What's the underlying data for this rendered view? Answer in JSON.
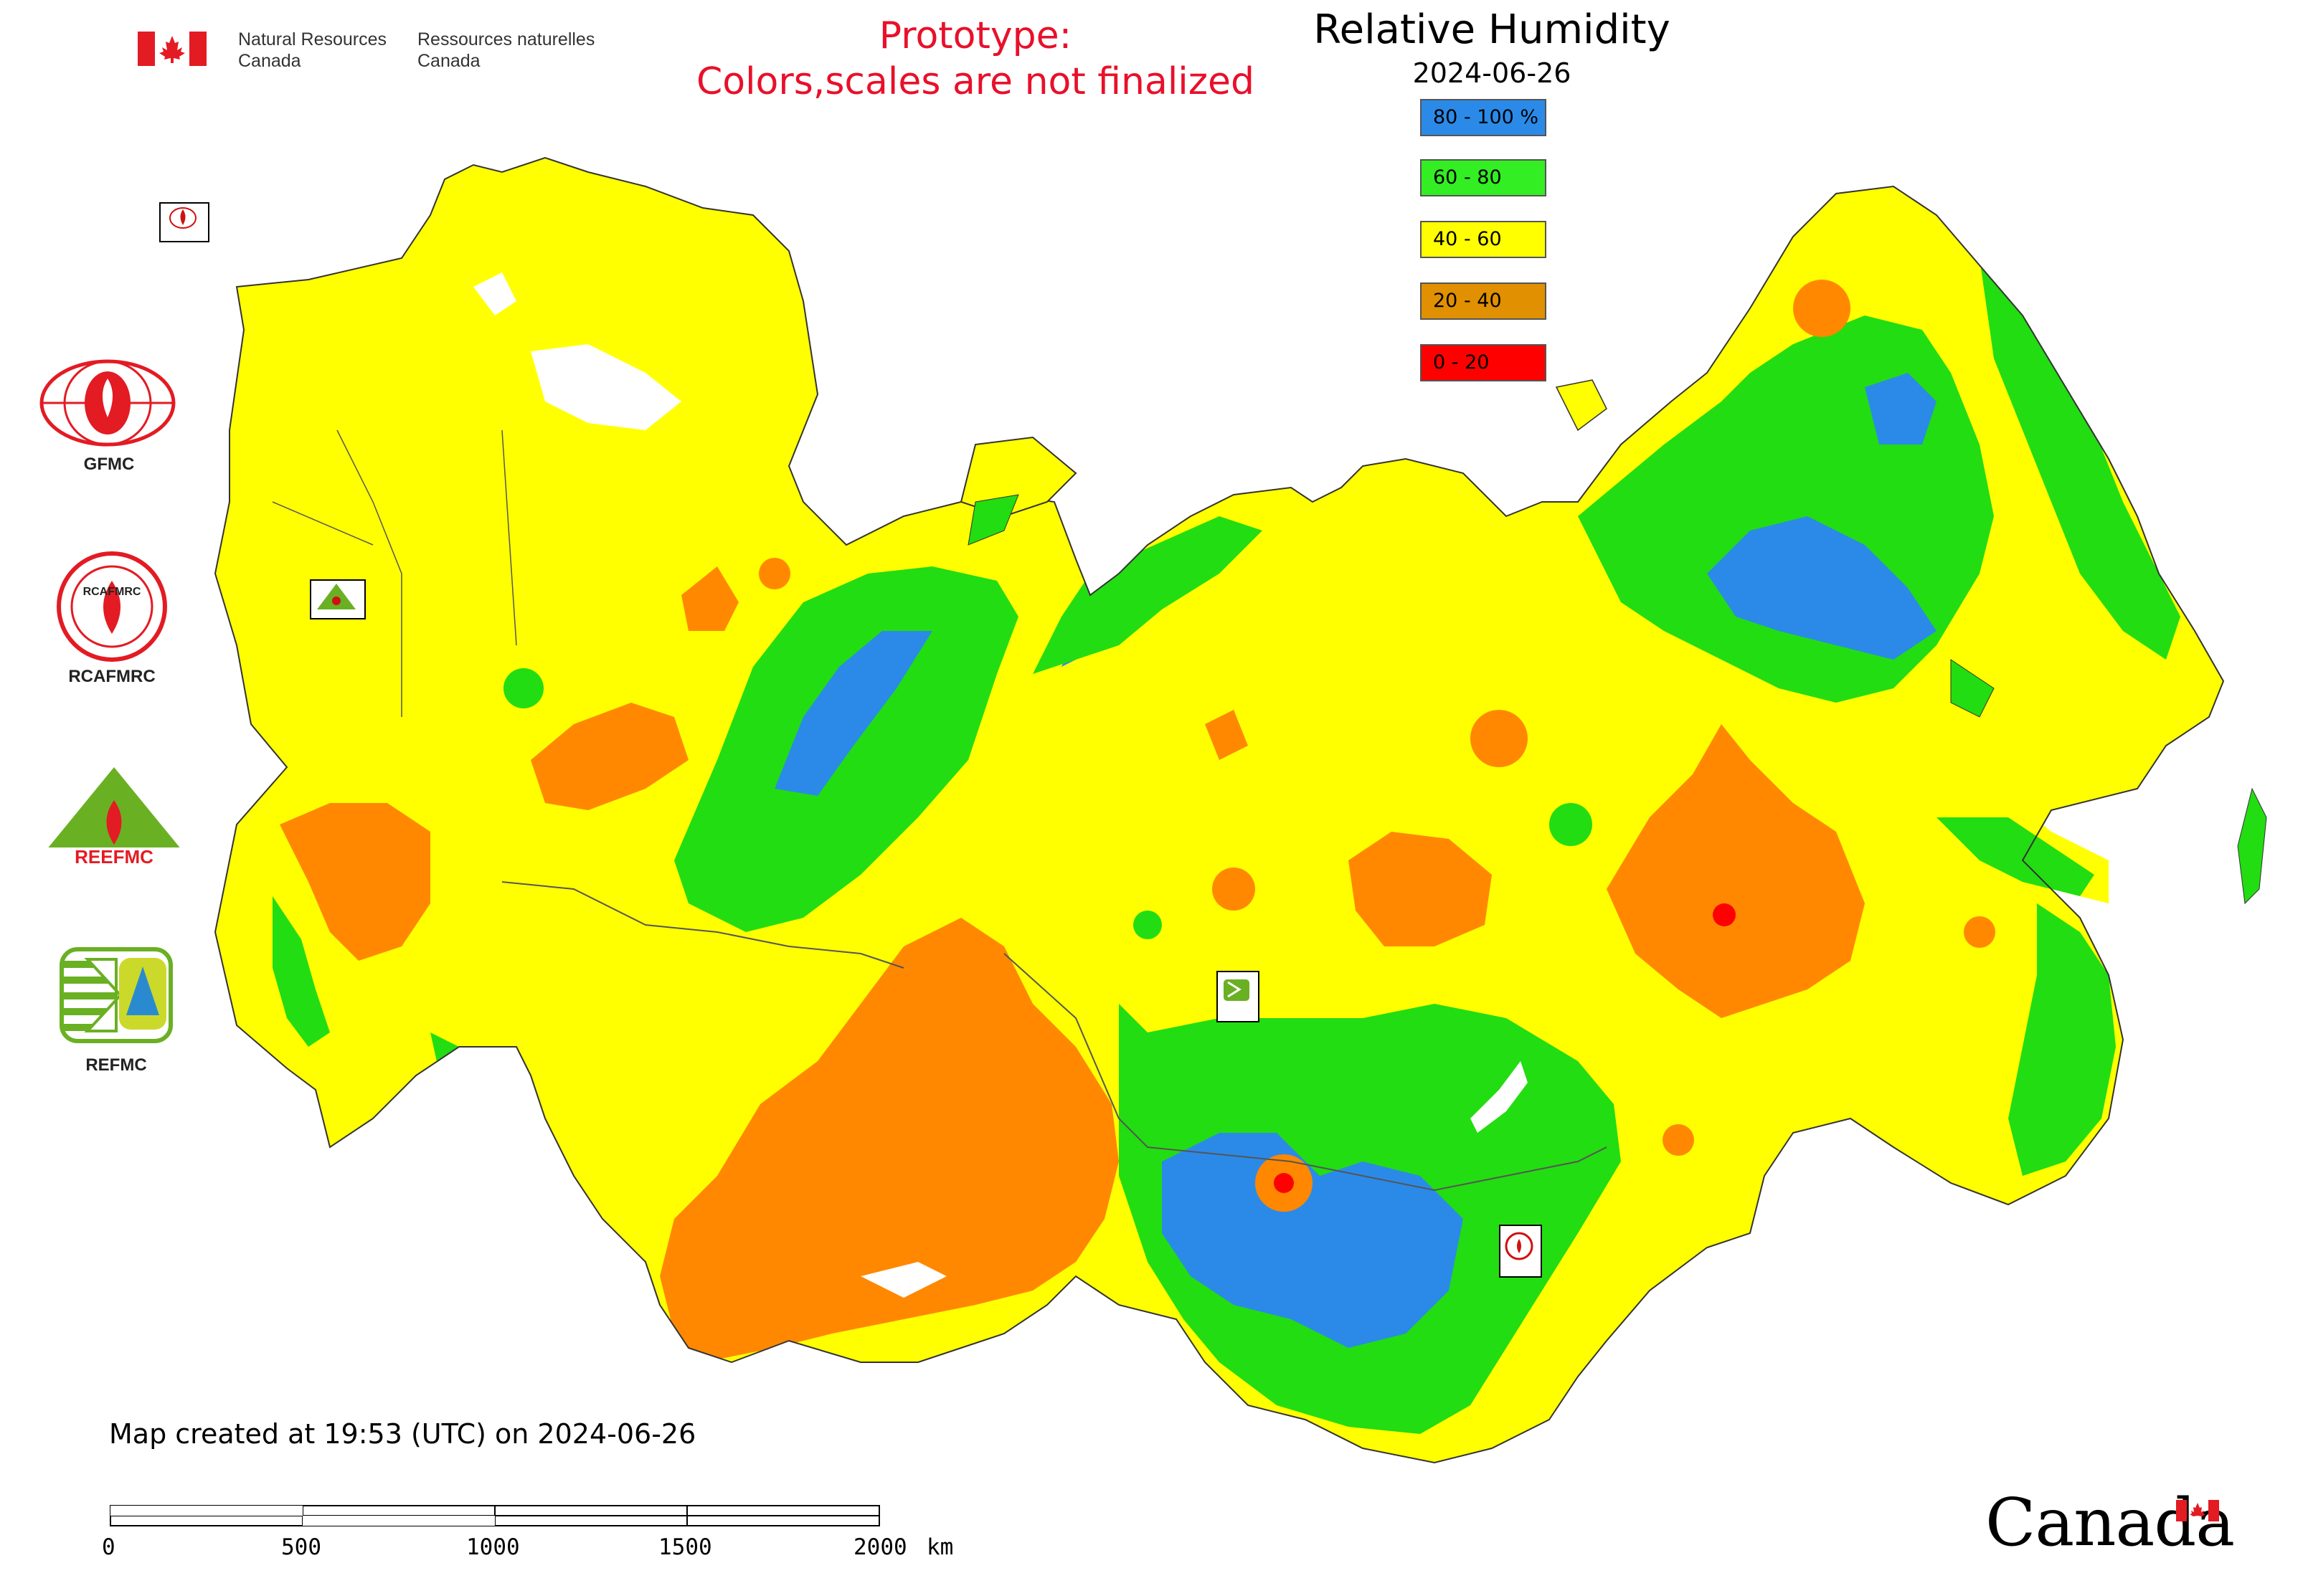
{
  "header": {
    "agency_en": [
      "Natural Resources",
      "Canada"
    ],
    "agency_fr": [
      "Ressources naturelles",
      "Canada"
    ],
    "prototype_notice": [
      "Prototype:",
      "Colors,scales are not finalized"
    ],
    "map_title": "Relative Humidity",
    "map_date": "2024-06-26"
  },
  "legend": [
    {
      "label": "80 - 100 %",
      "color": "#2b8ae8"
    },
    {
      "label": "60 - 80",
      "color": "#33ee22"
    },
    {
      "label": "40 - 60",
      "color": "#ffff00"
    },
    {
      "label": "20 - 40",
      "color": "#e09000"
    },
    {
      "label": "0 - 20",
      "color": "#ff0000"
    }
  ],
  "logos": [
    {
      "name": "GFMC"
    },
    {
      "name": "RCAFMRC"
    },
    {
      "name": "REEFMC"
    },
    {
      "name": "REFMC"
    }
  ],
  "map_markers": [
    {
      "label": "GFMC"
    },
    {
      "label": "REEFMC"
    },
    {
      "label": "REFMC"
    },
    {
      "label": "RCAFMRC"
    }
  ],
  "footer": {
    "created_text": "Map created at 19:53 (UTC) on 2024-06-26",
    "scale_unit": "km",
    "scale_ticks": [
      "0",
      "500",
      "1000",
      "1500",
      "2000"
    ],
    "wordmark": "Canada"
  },
  "colors": {
    "humid": "#2b8ae8",
    "moist": "#22dd11",
    "medium": "#ffff00",
    "dry": "#ff8800",
    "very_dry": "#ff0000",
    "notice_red": "#e8102a",
    "flag_red": "#e31b23"
  }
}
